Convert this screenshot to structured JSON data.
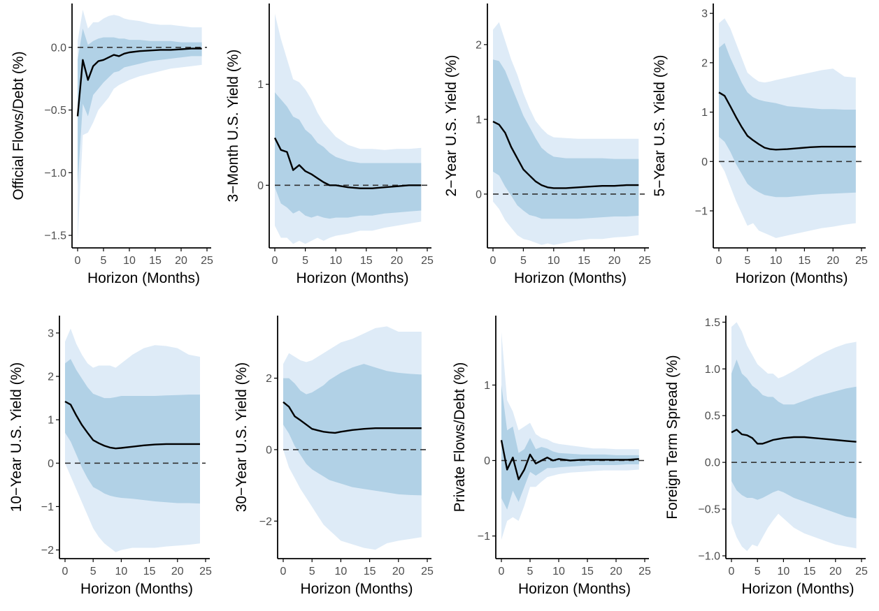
{
  "colors": {
    "outer_band": "#deebf7",
    "inner_band": "#b1d1e6",
    "line": "#000000",
    "zero_line": "#333333",
    "axis": "#000000"
  },
  "chart_data": [
    {
      "type": "line",
      "xlabel": "Horizon (Months)",
      "ylabel": "Official Flows/Debt (%)",
      "xlim": [
        0,
        25
      ],
      "ylim": [
        -1.6,
        0.35
      ],
      "xticks": [
        0,
        5,
        10,
        15,
        20,
        25
      ],
      "yticks": [
        -1.5,
        -1.0,
        -0.5,
        0.0
      ],
      "ytick_labels": [
        "−1.5",
        "−1.0",
        "−0.5",
        "0.0"
      ],
      "zero_line": true,
      "grid": false,
      "x": [
        0,
        1,
        2,
        3,
        4,
        5,
        6,
        7,
        8,
        9,
        10,
        12,
        14,
        16,
        18,
        20,
        22,
        24
      ],
      "y": [
        -0.55,
        -0.1,
        -0.26,
        -0.15,
        -0.11,
        -0.1,
        -0.08,
        -0.06,
        -0.07,
        -0.05,
        -0.04,
        -0.03,
        -0.025,
        -0.02,
        -0.02,
        -0.015,
        -0.01,
        -0.01
      ],
      "lo68": [
        -1.1,
        -0.45,
        -0.55,
        -0.38,
        -0.33,
        -0.28,
        -0.24,
        -0.2,
        -0.19,
        -0.16,
        -0.15,
        -0.13,
        -0.11,
        -0.1,
        -0.09,
        -0.08,
        -0.07,
        -0.07
      ],
      "hi68": [
        -0.1,
        0.15,
        0.02,
        0.05,
        0.07,
        0.08,
        0.08,
        0.08,
        0.07,
        0.07,
        0.06,
        0.06,
        0.05,
        0.05,
        0.05,
        0.04,
        0.04,
        0.04
      ],
      "lo95": [
        -1.55,
        -0.7,
        -0.68,
        -0.6,
        -0.5,
        -0.45,
        -0.4,
        -0.33,
        -0.3,
        -0.28,
        -0.26,
        -0.23,
        -0.21,
        -0.19,
        -0.17,
        -0.16,
        -0.15,
        -0.14
      ],
      "hi95": [
        0.05,
        0.3,
        0.15,
        0.2,
        0.2,
        0.23,
        0.25,
        0.26,
        0.25,
        0.23,
        0.22,
        0.21,
        0.19,
        0.18,
        0.18,
        0.17,
        0.16,
        0.16
      ]
    },
    {
      "type": "line",
      "xlabel": "Horizon (Months)",
      "ylabel": "3−Month U.S. Yield (%)",
      "xlim": [
        0,
        25
      ],
      "ylim": [
        -0.62,
        1.8
      ],
      "xticks": [
        0,
        5,
        10,
        15,
        20,
        25
      ],
      "yticks": [
        0,
        1
      ],
      "ytick_labels": [
        "0",
        "1"
      ],
      "zero_line": true,
      "grid": false,
      "x": [
        0,
        1,
        2,
        3,
        4,
        5,
        6,
        7,
        8,
        9,
        10,
        12,
        14,
        16,
        18,
        20,
        22,
        24
      ],
      "y": [
        0.47,
        0.35,
        0.33,
        0.15,
        0.2,
        0.14,
        0.11,
        0.07,
        0.03,
        0.0,
        0.0,
        -0.02,
        -0.03,
        -0.03,
        -0.02,
        -0.01,
        0.0,
        0.0
      ],
      "lo68": [
        -0.02,
        -0.18,
        -0.22,
        -0.28,
        -0.25,
        -0.3,
        -0.32,
        -0.3,
        -0.32,
        -0.33,
        -0.32,
        -0.32,
        -0.3,
        -0.3,
        -0.28,
        -0.27,
        -0.26,
        -0.25
      ],
      "hi68": [
        0.92,
        0.85,
        0.78,
        0.68,
        0.65,
        0.55,
        0.5,
        0.42,
        0.38,
        0.32,
        0.28,
        0.24,
        0.22,
        0.22,
        0.22,
        0.22,
        0.22,
        0.22
      ],
      "lo95": [
        -0.4,
        -0.52,
        -0.52,
        -0.58,
        -0.55,
        -0.58,
        -0.55,
        -0.52,
        -0.55,
        -0.52,
        -0.5,
        -0.48,
        -0.45,
        -0.45,
        -0.42,
        -0.4,
        -0.38,
        -0.36
      ],
      "hi95": [
        1.7,
        1.45,
        1.25,
        1.05,
        1.02,
        0.95,
        0.85,
        0.72,
        0.62,
        0.55,
        0.48,
        0.4,
        0.36,
        0.36,
        0.35,
        0.36,
        0.36,
        0.37
      ]
    },
    {
      "type": "line",
      "xlabel": "Horizon (Months)",
      "ylabel": "2−Year U.S. Yield (%)",
      "xlim": [
        0,
        25
      ],
      "ylim": [
        -0.72,
        2.55
      ],
      "xticks": [
        0,
        5,
        10,
        15,
        20,
        25
      ],
      "yticks": [
        0,
        1,
        2
      ],
      "ytick_labels": [
        "0",
        "1",
        "2"
      ],
      "zero_line": true,
      "grid": false,
      "x": [
        0,
        1,
        2,
        3,
        4,
        5,
        6,
        7,
        8,
        9,
        10,
        12,
        14,
        16,
        18,
        20,
        22,
        24
      ],
      "y": [
        0.97,
        0.93,
        0.82,
        0.63,
        0.48,
        0.33,
        0.25,
        0.17,
        0.12,
        0.09,
        0.08,
        0.08,
        0.09,
        0.1,
        0.11,
        0.11,
        0.12,
        0.12
      ],
      "lo68": [
        0.3,
        0.25,
        0.1,
        -0.02,
        -0.15,
        -0.22,
        -0.28,
        -0.3,
        -0.33,
        -0.33,
        -0.33,
        -0.33,
        -0.33,
        -0.32,
        -0.31,
        -0.3,
        -0.3,
        -0.29
      ],
      "hi68": [
        1.8,
        1.78,
        1.65,
        1.45,
        1.25,
        1.05,
        0.9,
        0.75,
        0.62,
        0.55,
        0.5,
        0.48,
        0.48,
        0.48,
        0.48,
        0.47,
        0.47,
        0.47
      ],
      "lo95": [
        -0.1,
        -0.2,
        -0.35,
        -0.45,
        -0.55,
        -0.6,
        -0.62,
        -0.65,
        -0.68,
        -0.66,
        -0.68,
        -0.65,
        -0.62,
        -0.6,
        -0.6,
        -0.58,
        -0.57,
        -0.55
      ],
      "hi95": [
        2.2,
        2.3,
        2.05,
        1.8,
        1.6,
        1.35,
        1.15,
        0.98,
        0.88,
        0.8,
        0.76,
        0.75,
        0.74,
        0.74,
        0.74,
        0.74,
        0.74,
        0.74
      ]
    },
    {
      "type": "line",
      "xlabel": "Horizon (Months)",
      "ylabel": "5−Year U.S. Yield (%)",
      "xlim": [
        0,
        25
      ],
      "ylim": [
        -1.75,
        3.2
      ],
      "xticks": [
        0,
        5,
        10,
        15,
        20,
        25
      ],
      "yticks": [
        -1,
        0,
        1,
        2,
        3
      ],
      "ytick_labels": [
        "−1",
        "0",
        "1",
        "2",
        "3"
      ],
      "zero_line": true,
      "grid": false,
      "x": [
        0,
        1,
        2,
        3,
        4,
        5,
        6,
        7,
        8,
        9,
        10,
        12,
        14,
        16,
        18,
        20,
        22,
        24
      ],
      "y": [
        1.4,
        1.33,
        1.12,
        0.9,
        0.7,
        0.52,
        0.43,
        0.35,
        0.28,
        0.25,
        0.24,
        0.25,
        0.27,
        0.29,
        0.3,
        0.3,
        0.3,
        0.3
      ],
      "lo68": [
        0.5,
        0.4,
        0.2,
        -0.05,
        -0.25,
        -0.45,
        -0.55,
        -0.62,
        -0.68,
        -0.7,
        -0.72,
        -0.72,
        -0.7,
        -0.68,
        -0.66,
        -0.65,
        -0.64,
        -0.63
      ],
      "hi68": [
        2.3,
        2.4,
        2.1,
        1.85,
        1.6,
        1.4,
        1.3,
        1.25,
        1.22,
        1.2,
        1.18,
        1.12,
        1.1,
        1.08,
        1.06,
        1.06,
        1.05,
        1.05
      ],
      "lo95": [
        0.0,
        -0.2,
        -0.5,
        -0.8,
        -1.05,
        -1.3,
        -1.25,
        -1.4,
        -1.45,
        -1.5,
        -1.55,
        -1.5,
        -1.45,
        -1.4,
        -1.35,
        -1.32,
        -1.28,
        -1.25
      ],
      "hi95": [
        2.8,
        2.9,
        2.7,
        2.4,
        2.1,
        1.8,
        1.7,
        1.62,
        1.6,
        1.62,
        1.65,
        1.7,
        1.75,
        1.8,
        1.85,
        1.88,
        1.72,
        1.7
      ]
    },
    {
      "type": "line",
      "xlabel": "Horizon (Months)",
      "ylabel": "10−Year U.S. Yield (%)",
      "xlim": [
        0,
        25
      ],
      "ylim": [
        -2.2,
        3.4
      ],
      "xticks": [
        0,
        5,
        10,
        15,
        20,
        25
      ],
      "yticks": [
        -2,
        -1,
        0,
        1,
        2,
        3
      ],
      "ytick_labels": [
        "−2",
        "−1",
        "0",
        "1",
        "2",
        "3"
      ],
      "zero_line": true,
      "grid": false,
      "x": [
        0,
        1,
        2,
        3,
        4,
        5,
        6,
        7,
        8,
        9,
        10,
        12,
        14,
        16,
        18,
        20,
        22,
        24
      ],
      "y": [
        1.42,
        1.35,
        1.1,
        0.88,
        0.7,
        0.53,
        0.46,
        0.4,
        0.36,
        0.34,
        0.35,
        0.38,
        0.41,
        0.43,
        0.44,
        0.44,
        0.44,
        0.44
      ],
      "lo68": [
        0.7,
        0.5,
        0.2,
        -0.1,
        -0.35,
        -0.55,
        -0.62,
        -0.7,
        -0.75,
        -0.78,
        -0.8,
        -0.82,
        -0.85,
        -0.88,
        -0.9,
        -0.92,
        -0.92,
        -0.93
      ],
      "hi68": [
        2.3,
        2.4,
        2.15,
        1.95,
        1.75,
        1.6,
        1.55,
        1.5,
        1.5,
        1.52,
        1.55,
        1.55,
        1.55,
        1.55,
        1.56,
        1.57,
        1.58,
        1.58
      ],
      "lo95": [
        0.0,
        -0.3,
        -0.6,
        -0.9,
        -1.2,
        -1.5,
        -1.7,
        -1.85,
        -1.95,
        -2.05,
        -2.0,
        -1.95,
        -1.95,
        -1.95,
        -1.92,
        -1.9,
        -1.88,
        -1.85
      ],
      "hi95": [
        2.8,
        3.1,
        2.75,
        2.5,
        2.3,
        2.2,
        2.25,
        2.25,
        2.25,
        2.2,
        2.3,
        2.5,
        2.65,
        2.72,
        2.7,
        2.65,
        2.5,
        2.45
      ]
    },
    {
      "type": "line",
      "xlabel": "Horizon (Months)",
      "ylabel": "30−Year U.S. Yield (%)",
      "xlim": [
        0,
        25
      ],
      "ylim": [
        -3.05,
        3.75
      ],
      "xticks": [
        0,
        5,
        10,
        15,
        20,
        25
      ],
      "yticks": [
        -2,
        0,
        2
      ],
      "ytick_labels": [
        "−2",
        "0",
        "2"
      ],
      "zero_line": true,
      "grid": false,
      "x": [
        0,
        1,
        2,
        3,
        4,
        5,
        6,
        7,
        8,
        9,
        10,
        12,
        14,
        16,
        18,
        20,
        22,
        24
      ],
      "y": [
        1.33,
        1.2,
        0.93,
        0.82,
        0.7,
        0.58,
        0.54,
        0.5,
        0.48,
        0.47,
        0.5,
        0.55,
        0.58,
        0.6,
        0.6,
        0.6,
        0.6,
        0.6
      ],
      "lo68": [
        0.7,
        0.45,
        0.1,
        -0.15,
        -0.4,
        -0.55,
        -0.65,
        -0.75,
        -0.85,
        -0.9,
        -0.95,
        -1.05,
        -1.1,
        -1.15,
        -1.2,
        -1.25,
        -1.27,
        -1.28
      ],
      "hi68": [
        2.0,
        2.0,
        1.85,
        1.65,
        1.55,
        1.6,
        1.7,
        1.8,
        1.95,
        2.05,
        2.15,
        2.3,
        2.4,
        2.3,
        2.2,
        2.15,
        2.12,
        2.1
      ],
      "lo95": [
        0.0,
        -0.5,
        -0.8,
        -1.1,
        -1.35,
        -1.6,
        -1.85,
        -2.1,
        -2.25,
        -2.4,
        -2.55,
        -2.65,
        -2.75,
        -2.8,
        -2.62,
        -2.55,
        -2.5,
        -2.45
      ],
      "hi95": [
        2.4,
        2.7,
        2.6,
        2.5,
        2.45,
        2.5,
        2.6,
        2.7,
        2.8,
        2.9,
        3.0,
        3.1,
        3.25,
        3.4,
        3.45,
        3.3,
        3.3,
        3.3
      ]
    },
    {
      "type": "line",
      "xlabel": "Horizon (Months)",
      "ylabel": "Private Flows/Debt (%)",
      "xlim": [
        0,
        25
      ],
      "ylim": [
        -1.3,
        1.92
      ],
      "xticks": [
        0,
        5,
        10,
        15,
        20,
        25
      ],
      "yticks": [
        -1,
        0,
        1
      ],
      "ytick_labels": [
        "−1",
        "0",
        "1"
      ],
      "zero_line": true,
      "grid": false,
      "x": [
        0,
        1,
        2,
        3,
        4,
        5,
        6,
        7,
        8,
        9,
        10,
        12,
        14,
        16,
        18,
        20,
        22,
        24
      ],
      "y": [
        0.27,
        -0.12,
        0.04,
        -0.25,
        -0.12,
        0.08,
        -0.04,
        0.0,
        0.04,
        0.0,
        0.02,
        0.0,
        0.01,
        0.01,
        0.01,
        0.01,
        0.01,
        0.02
      ],
      "lo68": [
        -0.5,
        -0.65,
        -0.4,
        -0.55,
        -0.35,
        -0.15,
        -0.2,
        -0.15,
        -0.1,
        -0.1,
        -0.09,
        -0.08,
        -0.07,
        -0.06,
        -0.06,
        -0.06,
        -0.05,
        -0.05
      ],
      "hi68": [
        1.0,
        0.4,
        0.45,
        0.1,
        0.15,
        0.3,
        0.15,
        0.18,
        0.16,
        0.12,
        0.1,
        0.09,
        0.08,
        0.08,
        0.08,
        0.07,
        0.07,
        0.07
      ],
      "lo95": [
        -1.05,
        -0.8,
        -0.75,
        -0.8,
        -0.6,
        -0.35,
        -0.35,
        -0.28,
        -0.22,
        -0.2,
        -0.18,
        -0.16,
        -0.15,
        -0.14,
        -0.13,
        -0.13,
        -0.13,
        -0.12
      ],
      "hi95": [
        1.7,
        0.8,
        0.65,
        0.4,
        0.45,
        0.5,
        0.35,
        0.3,
        0.28,
        0.24,
        0.22,
        0.2,
        0.18,
        0.16,
        0.16,
        0.15,
        0.15,
        0.15
      ]
    },
    {
      "type": "line",
      "xlabel": "Horizon (Months)",
      "ylabel": "Foreign Term Spread (%)",
      "xlim": [
        0,
        25
      ],
      "ylim": [
        -1.03,
        1.57
      ],
      "xticks": [
        0,
        5,
        10,
        15,
        20,
        25
      ],
      "yticks": [
        -1.0,
        -0.5,
        0.0,
        0.5,
        1.0,
        1.5
      ],
      "ytick_labels": [
        "−1.0",
        "−0.5",
        "0.0",
        "0.5",
        "1.0",
        "1.5"
      ],
      "zero_line": true,
      "grid": false,
      "x": [
        0,
        1,
        2,
        3,
        4,
        5,
        6,
        7,
        8,
        9,
        10,
        12,
        14,
        16,
        18,
        20,
        22,
        24
      ],
      "y": [
        0.32,
        0.35,
        0.3,
        0.29,
        0.26,
        0.2,
        0.2,
        0.22,
        0.24,
        0.25,
        0.26,
        0.27,
        0.27,
        0.26,
        0.25,
        0.24,
        0.23,
        0.22
      ],
      "lo68": [
        -0.2,
        -0.3,
        -0.35,
        -0.38,
        -0.38,
        -0.4,
        -0.38,
        -0.35,
        -0.32,
        -0.3,
        -0.32,
        -0.38,
        -0.42,
        -0.46,
        -0.5,
        -0.54,
        -0.58,
        -0.6
      ],
      "hi68": [
        0.95,
        1.1,
        0.95,
        0.9,
        0.82,
        0.78,
        0.72,
        0.7,
        0.7,
        0.65,
        0.62,
        0.62,
        0.66,
        0.7,
        0.73,
        0.76,
        0.79,
        0.81
      ],
      "lo95": [
        -0.65,
        -0.8,
        -0.9,
        -0.95,
        -0.88,
        -0.9,
        -0.8,
        -0.7,
        -0.62,
        -0.55,
        -0.6,
        -0.7,
        -0.76,
        -0.8,
        -0.84,
        -0.88,
        -0.9,
        -0.92
      ],
      "hi95": [
        1.45,
        1.5,
        1.4,
        1.25,
        1.15,
        1.05,
        1.0,
        0.95,
        0.95,
        0.9,
        0.92,
        0.98,
        1.05,
        1.12,
        1.18,
        1.23,
        1.27,
        1.29
      ]
    }
  ]
}
